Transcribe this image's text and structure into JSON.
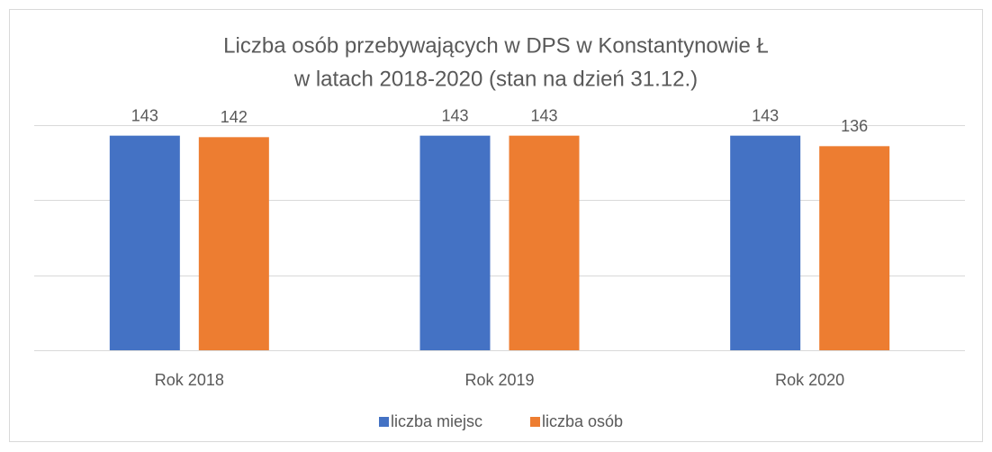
{
  "chart_data": {
    "type": "bar",
    "title": [
      "Liczba osób przebywających w DPS w Konstantynowie Ł",
      "w latach 2018-2020 (stan na dzień 31.12.)"
    ],
    "categories": [
      "Rok 2018",
      "Rok 2019",
      "Rok 2020"
    ],
    "series": [
      {
        "name": "liczba miejsc",
        "color": "#4472c4",
        "values": [
          143,
          143,
          143
        ]
      },
      {
        "name": "liczba osób",
        "color": "#ed7d31",
        "values": [
          142,
          143,
          136
        ]
      }
    ],
    "ylim": [
      0,
      150
    ],
    "yticks": [
      0,
      50,
      100,
      150
    ],
    "ytick_labels": false,
    "grid": true,
    "legend": "bottom"
  }
}
